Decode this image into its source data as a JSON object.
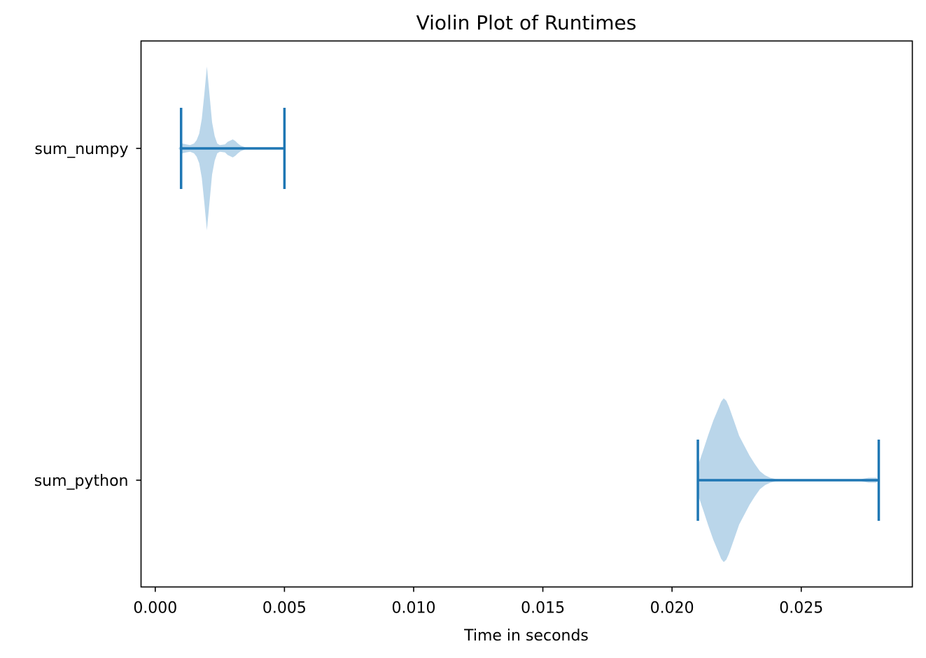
{
  "chart_data": {
    "type": "violin",
    "orientation": "horizontal",
    "title": "Violin Plot of Runtimes",
    "xlabel": "Time in seconds",
    "ylabel": "",
    "xlim": [
      -0.00055,
      0.0293
    ],
    "xticks": [
      0.0,
      0.005,
      0.01,
      0.015,
      0.02,
      0.025
    ],
    "xtick_labels": [
      "0.000",
      "0.005",
      "0.010",
      "0.015",
      "0.020",
      "0.025"
    ],
    "grid": false,
    "colors": {
      "body": "#bad6ea",
      "lines": "#1f77b4",
      "axis": "#000000"
    },
    "categories": [
      "sum_numpy",
      "sum_python"
    ],
    "series": [
      {
        "category": "sum_numpy",
        "min": 0.001,
        "max": 0.005,
        "density": [
          [
            0.0009,
            0.0
          ],
          [
            0.00098,
            0.03
          ],
          [
            0.00105,
            0.06
          ],
          [
            0.0012,
            0.05
          ],
          [
            0.00135,
            0.04
          ],
          [
            0.0015,
            0.06
          ],
          [
            0.0016,
            0.1
          ],
          [
            0.0017,
            0.18
          ],
          [
            0.0018,
            0.36
          ],
          [
            0.0019,
            0.66
          ],
          [
            0.002,
            1.0
          ],
          [
            0.0021,
            0.66
          ],
          [
            0.0022,
            0.32
          ],
          [
            0.0023,
            0.15
          ],
          [
            0.0024,
            0.06
          ],
          [
            0.0025,
            0.04
          ],
          [
            0.0027,
            0.05
          ],
          [
            0.0028,
            0.08
          ],
          [
            0.003,
            0.11
          ],
          [
            0.0031,
            0.09
          ],
          [
            0.0032,
            0.06
          ],
          [
            0.0033,
            0.035
          ],
          [
            0.0035,
            0.01
          ],
          [
            0.0036,
            0.0
          ]
        ]
      },
      {
        "category": "sum_python",
        "min": 0.021,
        "max": 0.028,
        "density": [
          [
            0.021,
            0.0
          ],
          [
            0.02105,
            0.22
          ],
          [
            0.0212,
            0.36
          ],
          [
            0.0214,
            0.55
          ],
          [
            0.0216,
            0.73
          ],
          [
            0.0218,
            0.88
          ],
          [
            0.0219,
            0.96
          ],
          [
            0.022,
            1.0
          ],
          [
            0.0221,
            0.97
          ],
          [
            0.0222,
            0.9
          ],
          [
            0.0224,
            0.72
          ],
          [
            0.0226,
            0.54
          ],
          [
            0.0228,
            0.42
          ],
          [
            0.023,
            0.3
          ],
          [
            0.0232,
            0.2
          ],
          [
            0.0234,
            0.11
          ],
          [
            0.0236,
            0.06
          ],
          [
            0.0238,
            0.03
          ],
          [
            0.024,
            0.015
          ],
          [
            0.0245,
            0.008
          ],
          [
            0.026,
            0.005
          ],
          [
            0.0272,
            0.006
          ],
          [
            0.0276,
            0.03
          ],
          [
            0.0279,
            0.03
          ],
          [
            0.028,
            0.0
          ]
        ]
      }
    ]
  }
}
